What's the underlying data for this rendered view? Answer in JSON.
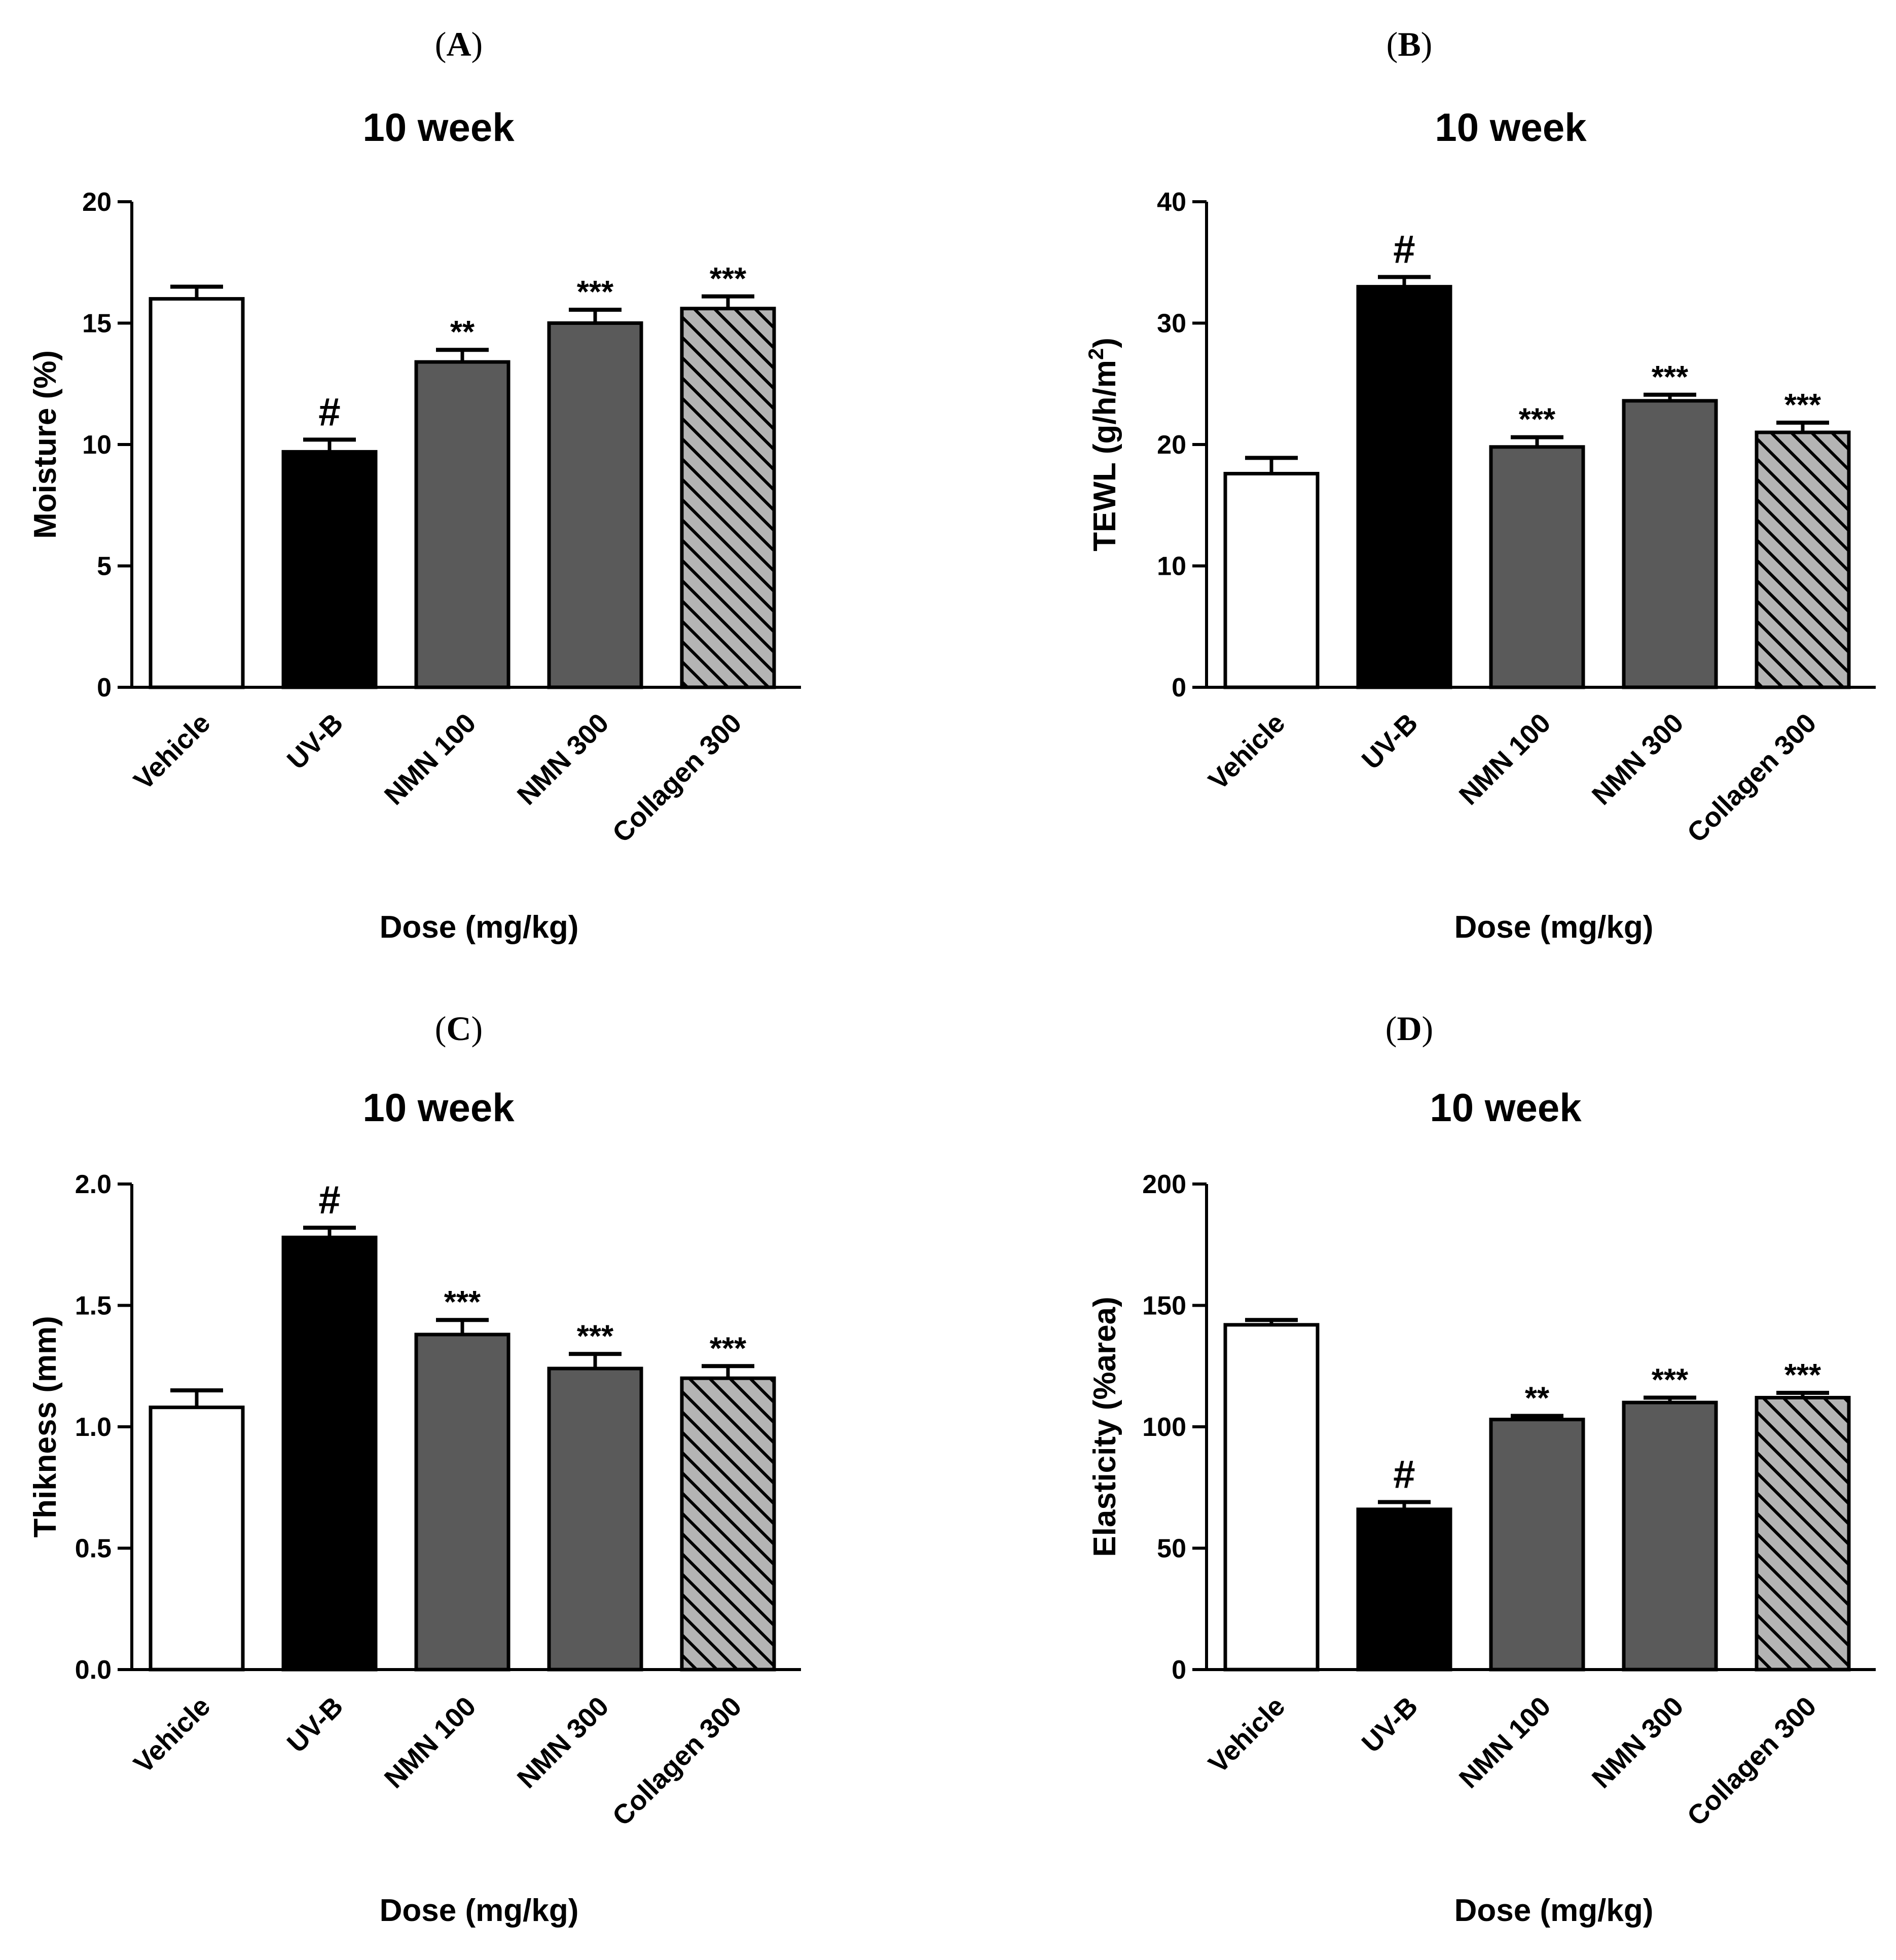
{
  "figure": {
    "xlabel": "Dose (mg/kg)"
  },
  "colors": {
    "vehicle": "#ffffff",
    "uvb": "#000000",
    "nmn": "#5a5a5a",
    "collagen": "#b4b4b4",
    "stroke": "#000000"
  },
  "chart_data": [
    {
      "type": "bar",
      "panel": "A",
      "title": "10 week",
      "xlabel": "Dose (mg/kg)",
      "ylabel": "Moisture (%)",
      "ylim": [
        0,
        20
      ],
      "yticks": [
        0,
        5,
        10,
        15,
        20
      ],
      "categories": [
        "Vehicle",
        "UV-B",
        "NMN 100",
        "NMN 300",
        "Collagen 300"
      ],
      "values": [
        16.0,
        9.7,
        13.4,
        15.0,
        15.6
      ],
      "errors": [
        0.5,
        0.5,
        0.5,
        0.55,
        0.5
      ],
      "annotations": [
        "",
        "#",
        "**",
        "***",
        "***"
      ]
    },
    {
      "type": "bar",
      "panel": "B",
      "title": "10 week",
      "xlabel": "Dose (mg/kg)",
      "ylabel": "TEWL (g/h/m",
      "ylabel_sup": "2",
      "ylabel_end": ")",
      "ylim": [
        0,
        40
      ],
      "yticks": [
        0,
        10,
        20,
        30,
        40
      ],
      "categories": [
        "Vehicle",
        "UV-B",
        "NMN 100",
        "NMN 300",
        "Collagen 300"
      ],
      "values": [
        17.6,
        33.0,
        19.8,
        23.6,
        21.0
      ],
      "errors": [
        1.3,
        0.8,
        0.8,
        0.5,
        0.8
      ],
      "annotations": [
        "",
        "#",
        "***",
        "***",
        "***"
      ]
    },
    {
      "type": "bar",
      "panel": "C",
      "title": "10 week",
      "xlabel": "Dose (mg/kg)",
      "ylabel": "Thikness (mm)",
      "ylim": [
        0,
        2.0
      ],
      "yticks": [
        "0.0",
        "0.5",
        "1.0",
        "1.5",
        "2.0"
      ],
      "categories": [
        "Vehicle",
        "UV-B",
        "NMN 100",
        "NMN 300",
        "Collagen 300"
      ],
      "values": [
        1.08,
        1.78,
        1.38,
        1.24,
        1.2
      ],
      "errors": [
        0.07,
        0.04,
        0.06,
        0.06,
        0.05
      ],
      "annotations": [
        "",
        "#",
        "***",
        "***",
        "***"
      ]
    },
    {
      "type": "bar",
      "panel": "D",
      "title": "10 week",
      "xlabel": "Dose (mg/kg)",
      "ylabel": "Elasticity (%area)",
      "ylim": [
        0,
        200
      ],
      "yticks": [
        0,
        50,
        100,
        150,
        200
      ],
      "categories": [
        "Vehicle",
        "UV-B",
        "NMN 100",
        "NMN 300",
        "Collagen 300"
      ],
      "values": [
        142,
        66,
        103,
        110,
        112
      ],
      "errors": [
        2,
        3,
        1.5,
        2,
        2
      ],
      "annotations": [
        "",
        "#",
        "**",
        "***",
        "***"
      ]
    }
  ]
}
